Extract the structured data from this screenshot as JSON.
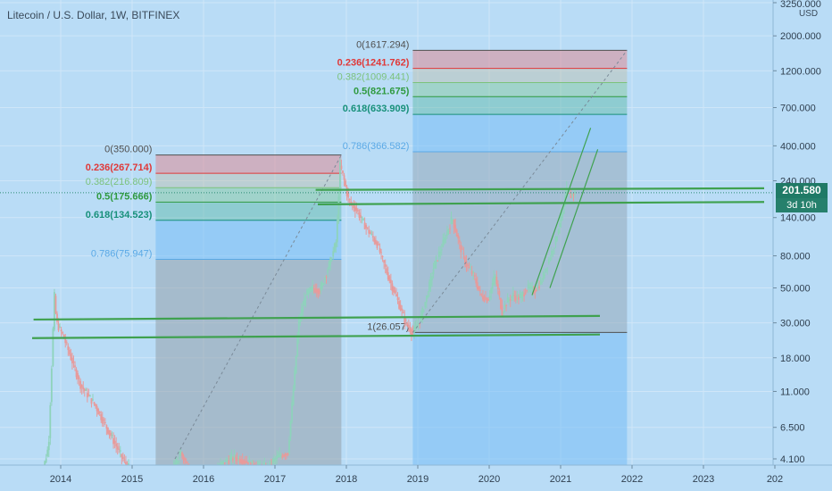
{
  "header": {
    "title": "Litecoin / U.S. Dollar, 1W, BITFINEX",
    "currency": "USD"
  },
  "price_badge": {
    "value": "201.580",
    "countdown": "3d 10h"
  },
  "colors": {
    "background": "#b9dcf6",
    "up": "#8ed3bb",
    "down": "#e89a9a",
    "trendline": "#3fa14f",
    "fib_236": "#e03838",
    "fib_382": "#7cc27c",
    "fib_5": "#2f9a3f",
    "fib_618": "#17907a",
    "fib_786": "#5aa9e6",
    "fib_neutral": "#505050"
  },
  "chart_data": {
    "type": "candlestick",
    "symbol": "Litecoin / U.S. Dollar",
    "interval": "1W",
    "exchange": "BITFINEX",
    "y_scale": "log",
    "ylim": [
      4.1,
      3250
    ],
    "xlim": [
      2013.0,
      2024.0
    ],
    "y_ticks": [
      "3250.000",
      "2000.000",
      "1200.000",
      "700.000",
      "400.000",
      "240.000",
      "140.000",
      "80.000",
      "50.000",
      "30.000",
      "18.000",
      "11.000",
      "6.500",
      "4.100"
    ],
    "x_ticks": [
      "2014",
      "2015",
      "2016",
      "2017",
      "2018",
      "2019",
      "2020",
      "2021",
      "2022",
      "2023",
      "202"
    ],
    "last_price": 201.58,
    "price_path": [
      [
        2013.7,
        2.5
      ],
      [
        2013.85,
        5
      ],
      [
        2013.93,
        45
      ],
      [
        2013.96,
        30
      ],
      [
        2014.05,
        25
      ],
      [
        2014.3,
        12
      ],
      [
        2014.5,
        9
      ],
      [
        2014.7,
        6
      ],
      [
        2014.9,
        4.0
      ],
      [
        2015.1,
        3.0
      ],
      [
        2015.5,
        2.8
      ],
      [
        2015.7,
        4.5
      ],
      [
        2015.85,
        3.2
      ],
      [
        2016.1,
        3.2
      ],
      [
        2016.3,
        3.9
      ],
      [
        2016.45,
        4.2
      ],
      [
        2016.7,
        3.8
      ],
      [
        2016.9,
        3.6
      ],
      [
        2017.05,
        4.2
      ],
      [
        2017.2,
        4.5
      ],
      [
        2017.3,
        15
      ],
      [
        2017.35,
        30
      ],
      [
        2017.45,
        45
      ],
      [
        2017.55,
        50
      ],
      [
        2017.65,
        48
      ],
      [
        2017.8,
        75
      ],
      [
        2017.88,
        100
      ],
      [
        2017.93,
        300
      ],
      [
        2017.98,
        250
      ],
      [
        2018.05,
        180
      ],
      [
        2018.15,
        160
      ],
      [
        2018.3,
        120
      ],
      [
        2018.45,
        95
      ],
      [
        2018.6,
        60
      ],
      [
        2018.75,
        40
      ],
      [
        2018.85,
        30
      ],
      [
        2018.95,
        26
      ],
      [
        2019.05,
        31
      ],
      [
        2019.15,
        45
      ],
      [
        2019.25,
        70
      ],
      [
        2019.35,
        90
      ],
      [
        2019.45,
        120
      ],
      [
        2019.5,
        140
      ],
      [
        2019.6,
        95
      ],
      [
        2019.7,
        70
      ],
      [
        2019.8,
        60
      ],
      [
        2019.9,
        45
      ],
      [
        2020.0,
        42
      ],
      [
        2020.1,
        60
      ],
      [
        2020.2,
        35
      ],
      [
        2020.25,
        40
      ],
      [
        2020.35,
        45
      ],
      [
        2020.45,
        43
      ],
      [
        2020.55,
        50
      ],
      [
        2020.65,
        48
      ],
      [
        2020.75,
        55
      ],
      [
        2020.85,
        75
      ],
      [
        2020.95,
        100
      ],
      [
        2021.0,
        130
      ],
      [
        2021.05,
        150
      ],
      [
        2021.1,
        210
      ],
      [
        2021.15,
        190
      ],
      [
        2021.2,
        201.58
      ]
    ],
    "fib_retracements": [
      {
        "name": "fib-2017",
        "x_range": [
          2015.33,
          2017.93
        ],
        "levels": [
          {
            "ratio": "0",
            "value": 350.0,
            "label": "0(350.000)"
          },
          {
            "ratio": "0.236",
            "value": 267.714,
            "label": "0.236(267.714)"
          },
          {
            "ratio": "0.382",
            "value": 216.809,
            "label": "0.382(216.809)"
          },
          {
            "ratio": "0.5",
            "value": 175.666,
            "label": "0.5(175.666)"
          },
          {
            "ratio": "0.618",
            "value": 134.523,
            "label": "0.618(134.523)"
          },
          {
            "ratio": "0.786",
            "value": 75.947,
            "label": "0.786(75.947)"
          }
        ]
      },
      {
        "name": "fib-2021",
        "x_range": [
          2018.93,
          2021.93
        ],
        "levels": [
          {
            "ratio": "0",
            "value": 1617.294,
            "label": "0(1617.294)"
          },
          {
            "ratio": "0.236",
            "value": 1241.762,
            "label": "0.236(1241.762)"
          },
          {
            "ratio": "0.382",
            "value": 1009.441,
            "label": "0.382(1009.441)"
          },
          {
            "ratio": "0.5",
            "value": 821.675,
            "label": "0.5(821.675)"
          },
          {
            "ratio": "0.618",
            "value": 633.909,
            "label": "0.618(633.909)"
          },
          {
            "ratio": "0.786",
            "value": 366.582,
            "label": "0.786(366.582)"
          },
          {
            "ratio": "1",
            "value": 26.057,
            "label": "1(26.057)"
          }
        ]
      }
    ],
    "trendlines": [
      {
        "name": "support-upper",
        "from": [
          2013.62,
          31.5
        ],
        "to": [
          2021.55,
          33.2
        ]
      },
      {
        "name": "support-lower",
        "from": [
          2013.6,
          24.0
        ],
        "to": [
          2021.55,
          25.3
        ]
      },
      {
        "name": "resistance-upper",
        "from": [
          2017.57,
          210
        ],
        "to": [
          2023.85,
          215
        ]
      },
      {
        "name": "resistance-lower",
        "from": [
          2017.6,
          170
        ],
        "to": [
          2023.85,
          176
        ]
      },
      {
        "name": "channel-upper",
        "from": [
          2020.6,
          45
        ],
        "to": [
          2021.42,
          520
        ]
      },
      {
        "name": "channel-lower",
        "from": [
          2020.85,
          50
        ],
        "to": [
          2021.52,
          380
        ]
      }
    ],
    "dashed_lines": [
      {
        "name": "fib-2017-diagonal",
        "from": [
          2015.6,
          4.1
        ],
        "to": [
          2017.93,
          350.0
        ]
      },
      {
        "name": "fib-2021-diagonal",
        "from": [
          2018.93,
          26.057
        ],
        "to": [
          2021.93,
          1617.294
        ]
      }
    ]
  }
}
